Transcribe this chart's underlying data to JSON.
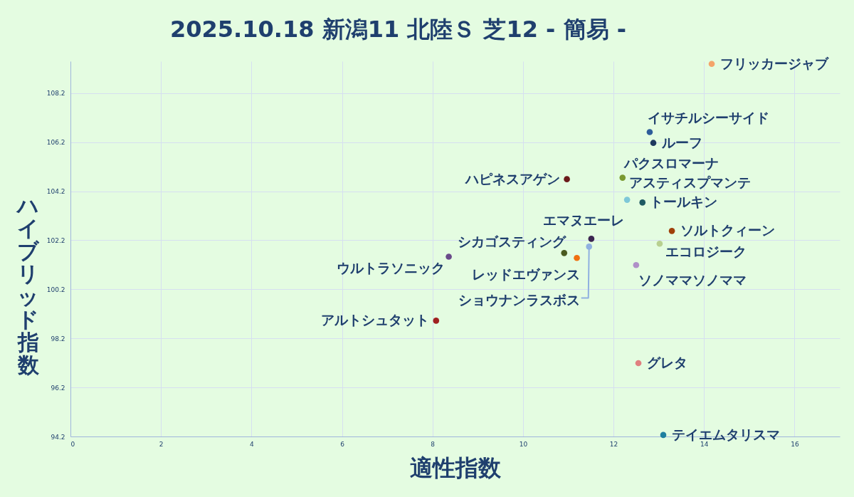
{
  "chart_data": {
    "type": "scatter",
    "title": "2025.10.18 新潟11 北陸Ｓ 芝12 - 簡易 -",
    "xlabel": "適性指数",
    "ylabel": "ハイブリッド指数",
    "xlim": [
      0,
      17
    ],
    "ylim": [
      94.2,
      109.5
    ],
    "xticks": [
      0,
      2,
      4,
      6,
      8,
      10,
      12,
      14,
      16
    ],
    "yticks": [
      94.2,
      96.2,
      98.2,
      100.2,
      102.2,
      104.2,
      106.2,
      108.2
    ],
    "grid": true,
    "marker": "circle",
    "series": [
      {
        "name": "フリッカージャブ",
        "color": "#f4a46a",
        "x": [
          14.17
        ],
        "values": [
          109.39
        ]
      },
      {
        "name": "イサチルシーサイド",
        "color": "#2e5d9a",
        "x": [
          12.8
        ],
        "values": [
          106.61
        ]
      },
      {
        "name": "ルーフ",
        "color": "#1f3a5f",
        "x": [
          12.88
        ],
        "values": [
          106.17
        ]
      },
      {
        "name": "ハピネスアゲン",
        "color": "#6b1a1a",
        "x": [
          10.97
        ],
        "values": [
          104.69
        ]
      },
      {
        "name": "パクスロマーナ",
        "color": "#7a9a30",
        "x": [
          12.2
        ],
        "values": [
          104.75
        ]
      },
      {
        "name": "アスティスプマンテ",
        "color": "#7ec8d8",
        "x": [
          12.3
        ],
        "values": [
          103.85
        ]
      },
      {
        "name": "トールキン",
        "color": "#1f5a63",
        "x": [
          12.64
        ],
        "values": [
          103.74
        ]
      },
      {
        "name": "エマヌエーレ",
        "color": "#3b2550",
        "x": [
          11.51
        ],
        "values": [
          102.26
        ]
      },
      {
        "name": "ショウナンラスボス",
        "color": "#8fb0e0",
        "x": [
          11.46
        ],
        "values": [
          101.94
        ]
      },
      {
        "name": "シカゴスティング",
        "color": "#4a5a20",
        "x": [
          10.91
        ],
        "values": [
          101.68
        ]
      },
      {
        "name": "レッドエヴァンス",
        "color": "#f07010",
        "x": [
          11.19
        ],
        "values": [
          101.48
        ]
      },
      {
        "name": "ウルトラソニック",
        "color": "#6a4a8a",
        "x": [
          8.36
        ],
        "values": [
          101.53
        ]
      },
      {
        "name": "ソルトクィーン",
        "color": "#a0400a",
        "x": [
          13.29
        ],
        "values": [
          102.58
        ]
      },
      {
        "name": "エコロジーク",
        "color": "#b8d090",
        "x": [
          13.02
        ],
        "values": [
          102.06
        ]
      },
      {
        "name": "ソノママソノママ",
        "color": "#b090c8",
        "x": [
          12.5
        ],
        "values": [
          101.19
        ]
      },
      {
        "name": "アルトシュタット",
        "color": "#a02020",
        "x": [
          8.08
        ],
        "values": [
          98.92
        ]
      },
      {
        "name": "グレタ",
        "color": "#e08080",
        "x": [
          12.55
        ],
        "values": [
          97.19
        ]
      },
      {
        "name": "テイエムタリスマ",
        "color": "#2080a0",
        "x": [
          13.1
        ],
        "values": [
          94.26
        ]
      }
    ]
  }
}
